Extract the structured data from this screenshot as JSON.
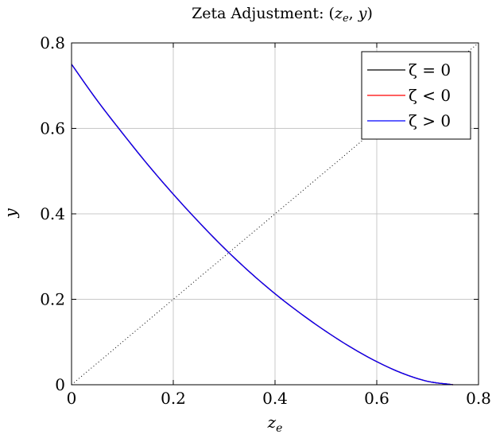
{
  "chart_data": {
    "type": "line",
    "title": {
      "prefix": "Zeta Adjustment: (",
      "var1": "z",
      "var1_sub": "e",
      "mid": ", ",
      "var2": "y",
      "suffix": ")"
    },
    "xlabel": {
      "main": "z",
      "sub": "e"
    },
    "ylabel": "y",
    "xlim": [
      0,
      0.8
    ],
    "ylim": [
      0,
      0.8
    ],
    "x_ticks": [
      "0",
      "0.2",
      "0.4",
      "0.6",
      "0.8"
    ],
    "y_ticks": [
      "0",
      "0.2",
      "0.4",
      "0.6",
      "0.8"
    ],
    "grid": true,
    "legend_position": "top-right",
    "reference_line": {
      "style": "dotted",
      "color": "#000000",
      "x": [
        0,
        0.8
      ],
      "y": [
        0,
        0.8
      ]
    },
    "x": [
      0.0,
      0.05,
      0.1,
      0.15,
      0.2,
      0.25,
      0.3,
      0.35,
      0.4,
      0.45,
      0.5,
      0.55,
      0.6,
      0.65,
      0.7,
      0.75
    ],
    "series": [
      {
        "name": "ζ = 0",
        "color": "#000000",
        "values": [
          0.75,
          0.666,
          0.589,
          0.515,
          0.446,
          0.381,
          0.32,
          0.264,
          0.213,
          0.167,
          0.125,
          0.087,
          0.054,
          0.027,
          0.008,
          0.0
        ]
      },
      {
        "name": "ζ < 0",
        "color": "#ff0000",
        "values": [
          0.75,
          0.666,
          0.589,
          0.515,
          0.446,
          0.381,
          0.32,
          0.264,
          0.213,
          0.167,
          0.125,
          0.087,
          0.054,
          0.027,
          0.008,
          0.0
        ]
      },
      {
        "name": "ζ > 0",
        "color": "#0000ff",
        "values": [
          0.75,
          0.666,
          0.589,
          0.515,
          0.446,
          0.381,
          0.32,
          0.264,
          0.213,
          0.167,
          0.125,
          0.087,
          0.054,
          0.027,
          0.008,
          0.0
        ]
      }
    ]
  }
}
